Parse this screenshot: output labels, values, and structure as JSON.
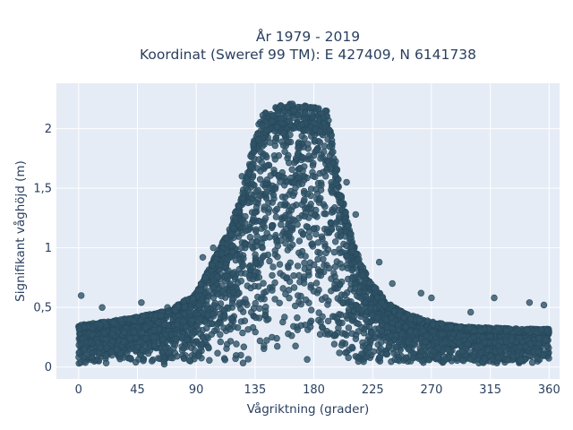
{
  "chart_data": {
    "type": "scatter",
    "title_lines": [
      "År 1979 - 2019",
      "Koordinat (Sweref 99 TM): E 427409, N 6141738"
    ],
    "xlabel": "Vågriktning (grader)",
    "ylabel": "Signifikant våghöjd (m)",
    "xlim": [
      -17,
      368
    ],
    "ylim": [
      -0.1,
      2.38
    ],
    "x_ticks": [
      0,
      45,
      90,
      135,
      180,
      225,
      270,
      315,
      360
    ],
    "x_tick_labels": [
      "0",
      "45",
      "90",
      "135",
      "180",
      "225",
      "270",
      "315",
      "360"
    ],
    "y_ticks": [
      0,
      0.5,
      1,
      1.5,
      2
    ],
    "y_tick_labels": [
      "0",
      "0,5",
      "1",
      "1,5",
      "2"
    ],
    "grid": true,
    "marker_color": "#2f5266",
    "envelope": {
      "x": [
        0,
        20,
        45,
        70,
        90,
        105,
        115,
        125,
        133,
        140,
        150,
        160,
        170,
        180,
        190,
        195,
        200,
        210,
        220,
        235,
        250,
        270,
        290,
        315,
        340,
        360
      ],
      "y_max": [
        0.35,
        0.38,
        0.42,
        0.48,
        0.62,
        0.95,
        1.15,
        1.45,
        1.85,
        2.12,
        2.18,
        2.22,
        2.21,
        2.19,
        2.15,
        1.85,
        1.5,
        1.05,
        0.78,
        0.55,
        0.45,
        0.38,
        0.34,
        0.33,
        0.32,
        0.32
      ]
    },
    "outliers": [
      {
        "x": 2,
        "y": 0.6
      },
      {
        "x": 18,
        "y": 0.5
      },
      {
        "x": 48,
        "y": 0.54
      },
      {
        "x": 68,
        "y": 0.5
      },
      {
        "x": 95,
        "y": 0.92
      },
      {
        "x": 103,
        "y": 1.0
      },
      {
        "x": 110,
        "y": 1.04
      },
      {
        "x": 120,
        "y": 1.25
      },
      {
        "x": 125,
        "y": 1.6
      },
      {
        "x": 205,
        "y": 1.55
      },
      {
        "x": 212,
        "y": 1.28
      },
      {
        "x": 230,
        "y": 0.88
      },
      {
        "x": 240,
        "y": 0.7
      },
      {
        "x": 262,
        "y": 0.62
      },
      {
        "x": 270,
        "y": 0.58
      },
      {
        "x": 300,
        "y": 0.46
      },
      {
        "x": 318,
        "y": 0.58
      },
      {
        "x": 345,
        "y": 0.54
      },
      {
        "x": 356,
        "y": 0.52
      }
    ]
  }
}
